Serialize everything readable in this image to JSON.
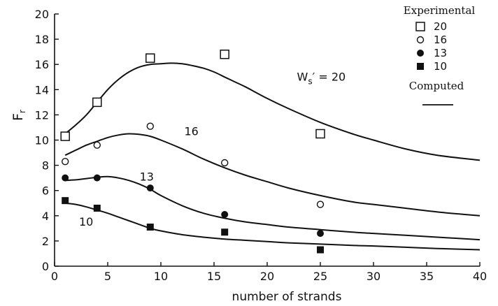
{
  "chart_data": {
    "type": "scatter",
    "xlabel": "number of strands",
    "ylabel": {
      "main": "F",
      "sub": "r"
    },
    "xlim": [
      0,
      40
    ],
    "ylim": [
      0,
      20
    ],
    "xticks": [
      0,
      5,
      10,
      15,
      20,
      25,
      30,
      35,
      40
    ],
    "yticks": [
      0,
      2,
      4,
      6,
      8,
      10,
      12,
      14,
      16,
      18,
      20
    ],
    "grid": false,
    "legend": {
      "placement": "top-right",
      "title": "Experimental",
      "computed_label": "Computed",
      "entries": [
        {
          "label": "20",
          "marker": "open-square"
        },
        {
          "label": "16",
          "marker": "open-circle"
        },
        {
          "label": "13",
          "marker": "filled-circle"
        },
        {
          "label": "10",
          "marker": "filled-square"
        }
      ]
    },
    "experimental": [
      {
        "series": "20",
        "marker": "open-square",
        "x": [
          1,
          4,
          9,
          16,
          25
        ],
        "y": [
          10.3,
          13.0,
          16.5,
          16.8,
          10.5
        ]
      },
      {
        "series": "16",
        "marker": "open-circle",
        "x": [
          1,
          4,
          9,
          16,
          25
        ],
        "y": [
          8.3,
          9.6,
          11.1,
          8.2,
          4.9
        ]
      },
      {
        "series": "13",
        "marker": "filled-circle",
        "x": [
          1,
          4,
          9,
          16,
          25
        ],
        "y": [
          7.0,
          7.0,
          6.2,
          4.1,
          2.6
        ]
      },
      {
        "series": "10",
        "marker": "filled-square",
        "x": [
          1,
          4,
          9,
          16,
          25
        ],
        "y": [
          5.2,
          4.6,
          3.1,
          2.7,
          1.3
        ]
      }
    ],
    "computed": [
      {
        "series": "20",
        "label": "W",
        "label_sub": "s",
        "label_suffix": "′ = 20",
        "x": [
          1,
          2,
          3,
          4,
          5,
          6,
          7,
          8,
          9,
          10,
          11,
          12,
          13,
          14,
          15,
          16,
          17,
          18,
          20,
          22,
          25,
          28,
          30,
          33,
          36,
          40
        ],
        "y": [
          10.5,
          11.2,
          12.0,
          13.0,
          14.0,
          14.8,
          15.4,
          15.8,
          16.0,
          16.05,
          16.1,
          16.05,
          15.9,
          15.7,
          15.4,
          15.0,
          14.6,
          14.2,
          13.3,
          12.5,
          11.4,
          10.5,
          10.0,
          9.3,
          8.8,
          8.4
        ]
      },
      {
        "series": "16",
        "label": "16",
        "x": [
          1,
          2,
          3,
          4,
          5,
          6,
          7,
          8,
          9,
          10,
          12,
          14,
          16,
          18,
          20,
          22,
          25,
          28,
          30,
          33,
          36,
          40
        ],
        "y": [
          8.8,
          9.2,
          9.6,
          9.9,
          10.2,
          10.4,
          10.5,
          10.45,
          10.3,
          10.0,
          9.3,
          8.5,
          7.8,
          7.2,
          6.7,
          6.2,
          5.6,
          5.1,
          4.9,
          4.6,
          4.3,
          4.0
        ]
      },
      {
        "series": "13",
        "label": "13",
        "x": [
          1,
          2,
          3,
          4,
          5,
          6,
          7,
          8,
          9,
          10,
          12,
          14,
          16,
          18,
          20,
          22,
          25,
          28,
          30,
          33,
          36,
          40
        ],
        "y": [
          6.8,
          6.85,
          6.95,
          7.05,
          7.1,
          7.0,
          6.8,
          6.5,
          6.1,
          5.6,
          4.8,
          4.2,
          3.8,
          3.5,
          3.3,
          3.1,
          2.9,
          2.7,
          2.6,
          2.45,
          2.3,
          2.1
        ]
      },
      {
        "series": "10",
        "label": "10",
        "x": [
          1,
          2,
          3,
          4,
          5,
          6,
          7,
          8,
          9,
          10,
          12,
          14,
          16,
          18,
          20,
          22,
          25,
          28,
          30,
          33,
          36,
          40
        ],
        "y": [
          5.0,
          4.9,
          4.7,
          4.45,
          4.2,
          3.9,
          3.6,
          3.3,
          3.0,
          2.8,
          2.5,
          2.3,
          2.15,
          2.05,
          1.95,
          1.85,
          1.75,
          1.65,
          1.6,
          1.5,
          1.4,
          1.3
        ]
      }
    ]
  }
}
